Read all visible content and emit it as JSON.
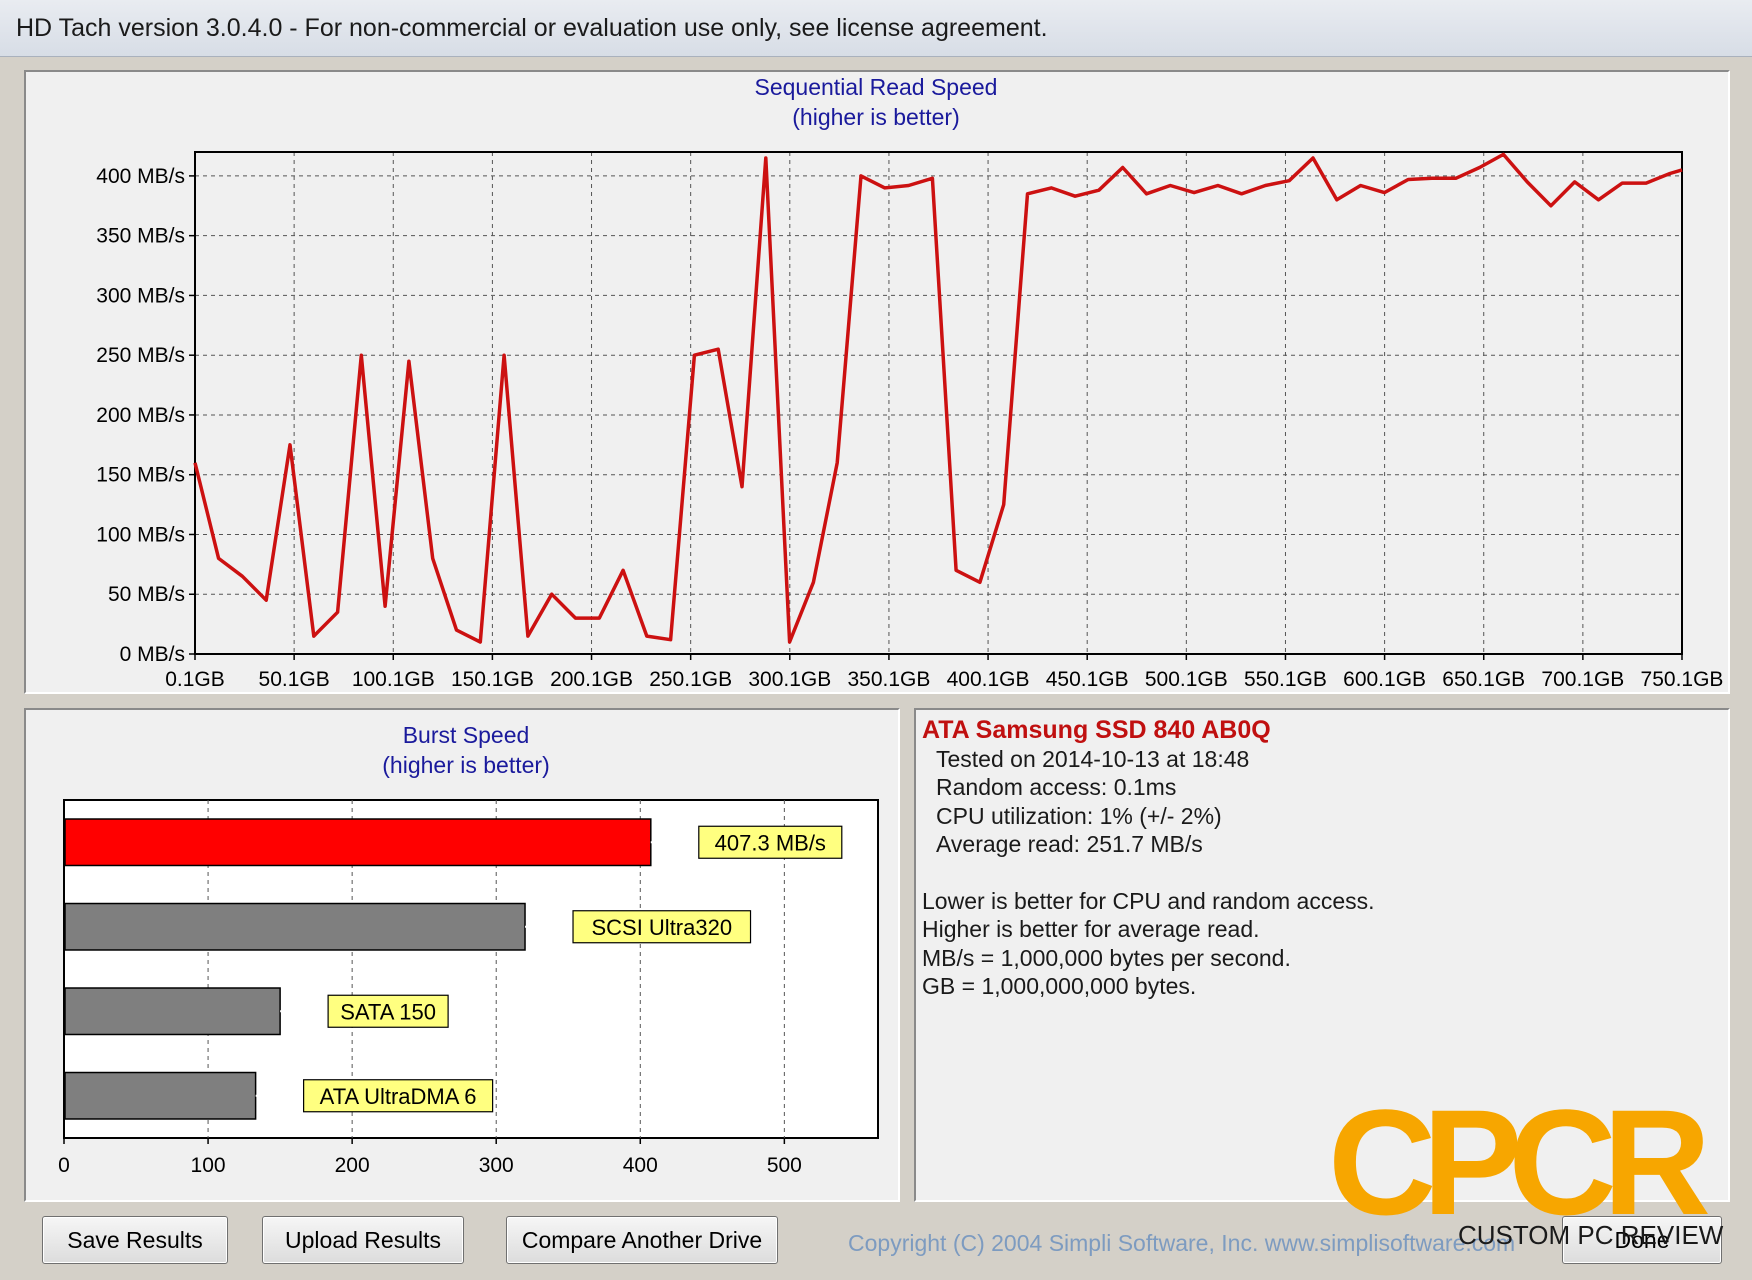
{
  "window": {
    "title": "HD Tach version 3.0.4.0  - For non-commercial or evaluation use only, see license agreement."
  },
  "sequential": {
    "title": "Sequential Read Speed",
    "subtitle": "(higher is better)"
  },
  "burst": {
    "title": "Burst Speed",
    "subtitle": "(higher is better)"
  },
  "chart_data": [
    {
      "type": "line",
      "title": "Sequential Read Speed",
      "subtitle": "(higher is better)",
      "y_tick_labels": [
        "0 MB/s",
        "50 MB/s",
        "100 MB/s",
        "150 MB/s",
        "200 MB/s",
        "250 MB/s",
        "300 MB/s",
        "350 MB/s",
        "400 MB/s"
      ],
      "x_tick_labels": [
        "0.1GB",
        "50.1GB",
        "100.1GB",
        "150.1GB",
        "200.1GB",
        "250.1GB",
        "300.1GB",
        "350.1GB",
        "400.1GB",
        "450.1GB",
        "500.1GB",
        "550.1GB",
        "600.1GB",
        "650.1GB",
        "700.1GB",
        "750.1GB"
      ],
      "xlim": [
        0.1,
        750.1
      ],
      "ylim": [
        0,
        420
      ],
      "grid": true,
      "series": [
        {
          "color": "#cc1111",
          "x": [
            0.1,
            12,
            24,
            36,
            48,
            60,
            72,
            84,
            96,
            108,
            120,
            132,
            144,
            156,
            168,
            180,
            192,
            204,
            216,
            228,
            240,
            252,
            264,
            276,
            288,
            300,
            312,
            324,
            336,
            348,
            360,
            372,
            384,
            396,
            408,
            420,
            432,
            444,
            456,
            468,
            480,
            492,
            504,
            516,
            528,
            540,
            552,
            564,
            576,
            588,
            600,
            612,
            624,
            636,
            648,
            660,
            672,
            684,
            696,
            708,
            720,
            732,
            744,
            750.1
          ],
          "y": [
            160,
            80,
            65,
            45,
            175,
            15,
            35,
            250,
            40,
            245,
            80,
            20,
            10,
            250,
            15,
            50,
            30,
            30,
            70,
            15,
            12,
            250,
            255,
            140,
            415,
            10,
            60,
            160,
            400,
            390,
            392,
            398,
            70,
            60,
            125,
            385,
            390,
            383,
            388,
            407,
            385,
            392,
            386,
            392,
            385,
            392,
            396,
            415,
            380,
            392,
            386,
            397,
            398,
            398,
            407,
            418,
            395,
            375,
            395,
            380,
            394,
            394,
            402,
            405
          ]
        }
      ]
    },
    {
      "type": "bar",
      "title": "Burst Speed",
      "subtitle": "(higher is better)",
      "orientation": "horizontal",
      "x_tick_labels": [
        "0",
        "100",
        "200",
        "300",
        "400",
        "500"
      ],
      "xlim": [
        0,
        565
      ],
      "grid": true,
      "categories": [
        "407.3 MB/s",
        "SCSI Ultra320",
        "SATA 150",
        "ATA UltraDMA 6"
      ],
      "values": [
        407.3,
        320,
        150,
        133
      ],
      "colors": [
        "#ff0000",
        "#7f7f7f",
        "#7f7f7f",
        "#7f7f7f"
      ]
    }
  ],
  "info": {
    "drive": "ATA Samsung SSD 840 AB0Q",
    "tested": "Tested on 2014-10-13 at 18:48",
    "random_access": "Random access: 0.1ms",
    "cpu": "CPU utilization: 1% (+/- 2%)",
    "average": "Average read: 251.7 MB/s",
    "notes": [
      "Lower is better for CPU and random access.",
      "Higher is better for average read.",
      "MB/s = 1,000,000 bytes per second.",
      "GB = 1,000,000,000 bytes."
    ]
  },
  "buttons": {
    "save": "Save Results",
    "upload": "Upload Results",
    "compare": "Compare Another Drive",
    "done": "Done"
  },
  "copyright": "Copyright (C) 2004 Simpli Software, Inc. www.simplisoftware.com",
  "watermark": {
    "logo": "CPCR",
    "text": "CUSTOM PC REVIEW",
    "color": "#f7a600"
  }
}
